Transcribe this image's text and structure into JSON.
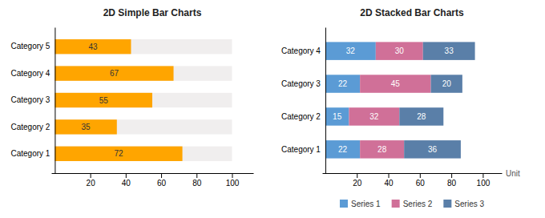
{
  "chart_data": [
    {
      "type": "bar",
      "orientation": "horizontal",
      "title": "2D Simple Bar Charts",
      "categories": [
        "Category 1",
        "Category 2",
        "Category 3",
        "Category 4",
        "Category 5"
      ],
      "values": [
        72,
        35,
        55,
        67,
        43
      ],
      "color": "#FFA500",
      "background": {
        "values": [
          100,
          100,
          100,
          100,
          100
        ],
        "color": "#F0EEEE"
      },
      "xlim": [
        -2,
        112
      ],
      "xticks": [
        20,
        40,
        60,
        80,
        100
      ],
      "grid": false,
      "data_labels": true
    },
    {
      "type": "bar",
      "orientation": "horizontal",
      "stacked": true,
      "title": "2D Stacked Bar Charts",
      "x_label": "Unit",
      "categories": [
        "Category 1",
        "Category 2",
        "Category 3",
        "Category 4"
      ],
      "series": [
        {
          "name": "Series 1",
          "color": "#5B9BD5",
          "values": [
            22,
            15,
            22,
            32
          ]
        },
        {
          "name": "Series 2",
          "color": "#D07098",
          "values": [
            28,
            32,
            45,
            30
          ]
        },
        {
          "name": "Series 3",
          "color": "#5A7FA8",
          "values": [
            36,
            28,
            20,
            33
          ]
        }
      ],
      "xlim": [
        -2,
        112
      ],
      "xticks": [
        20,
        40,
        60,
        80,
        100
      ],
      "grid": false,
      "legend": "bottom",
      "data_labels": true
    }
  ]
}
